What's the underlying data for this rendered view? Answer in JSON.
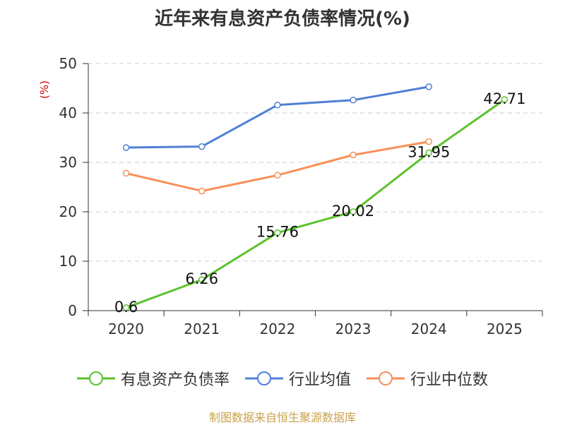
{
  "chart_data": {
    "type": "line",
    "title": "近年来有息资产负债率情况(%)",
    "ylabel": "(%)",
    "categories": [
      "2020",
      "2021",
      "2022",
      "2023",
      "2024",
      "2025"
    ],
    "ylim": [
      0,
      50
    ],
    "yticks": [
      0,
      10,
      20,
      30,
      40,
      50
    ],
    "grid": true,
    "legend_position": "bottom",
    "series": [
      {
        "name": "有息资产负债率",
        "color": "#5cc22c",
        "values": [
          0.6,
          6.26,
          15.76,
          20.02,
          31.95,
          42.71
        ],
        "labels": [
          "0.6",
          "6.26",
          "15.76",
          "20.02",
          "31.95",
          "42.71"
        ]
      },
      {
        "name": "行业均值",
        "color": "#4f7fd6",
        "values": [
          33.0,
          33.2,
          41.6,
          42.6,
          45.3,
          null
        ]
      },
      {
        "name": "行业中位数",
        "color": "#f79059",
        "values": [
          27.8,
          24.2,
          27.4,
          31.5,
          34.2,
          null
        ]
      }
    ]
  },
  "source": {
    "text": "制图数据来自恒生聚源数据库",
    "color": "#c9a24a"
  },
  "colors": {
    "axis": "#333333",
    "grid": "#cccccc",
    "ylabel": "#cc0000"
  }
}
